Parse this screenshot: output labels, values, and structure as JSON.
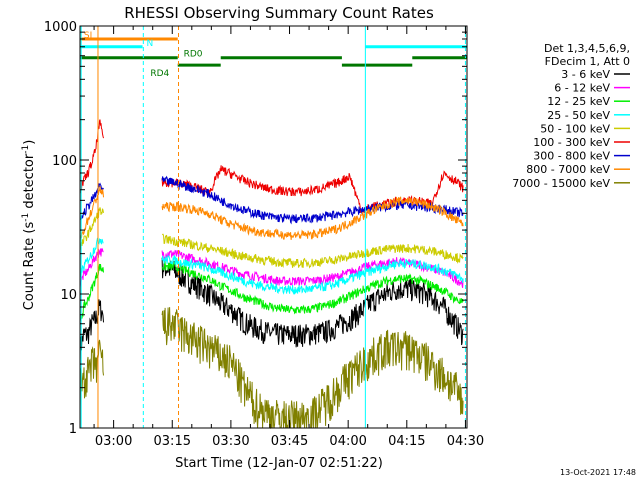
{
  "chart_data": {
    "type": "line",
    "title": "RHESSI Observing Summary Count Rates",
    "xlabel": "Start Time (12-Jan-07 02:51:22)",
    "ylabel_main": "Count Rate (s",
    "ylabel_sup1": "-1",
    "ylabel_mid": " detector",
    "ylabel_sup2": "-1",
    "ylabel_end": ")",
    "x_range_minutes": [
      0,
      99
    ],
    "y_scale": "log",
    "ylim": [
      1,
      1000
    ],
    "x_ticks": [
      {
        "label": "03:00",
        "minute": 8.6
      },
      {
        "label": "03:15",
        "minute": 23.6
      },
      {
        "label": "03:30",
        "minute": 38.6
      },
      {
        "label": "03:45",
        "minute": 53.6
      },
      {
        "label": "04:00",
        "minute": 68.6
      },
      {
        "label": "04:15",
        "minute": 83.6
      },
      {
        "label": "04:30",
        "minute": 98.6
      }
    ],
    "y_ticks": [
      {
        "label": "1",
        "value": 1
      },
      {
        "label": "10",
        "value": 10
      },
      {
        "label": "100",
        "value": 100
      },
      {
        "label": "1000",
        "value": 1000
      }
    ],
    "legend": {
      "position": "right",
      "header": [
        "Det 1,3,4,5,6,9,",
        "FDecim 1, Att 0"
      ],
      "entries": [
        {
          "label": "3 - 6 keV",
          "color": "#000000"
        },
        {
          "label": "6 - 12 keV",
          "color": "#ff00ff"
        },
        {
          "label": "12 - 25 keV",
          "color": "#00ee00"
        },
        {
          "label": "25 - 50 keV",
          "color": "#00ffff"
        },
        {
          "label": "50 - 100 keV",
          "color": "#cccc00"
        },
        {
          "label": "100 - 300 keV",
          "color": "#ee0000"
        },
        {
          "label": "300 - 800 keV",
          "color": "#0000cc"
        },
        {
          "label": "800 - 7000 keV",
          "color": "#ff8800"
        },
        {
          "label": "7000 - 15000 keV",
          "color": "#808000"
        }
      ]
    },
    "series": [
      {
        "name": "3 - 6 keV",
        "color": "#000000",
        "segments": [
          {
            "x": [
              0,
              1,
              2,
              3,
              4,
              5,
              6
            ],
            "y": [
              4,
              5,
              5,
              6,
              6.5,
              8,
              7
            ]
          },
          {
            "x": [
              21,
              24,
              27,
              30,
              33,
              36,
              39,
              42,
              45,
              48,
              51,
              54,
              57,
              60,
              63,
              66,
              69,
              72,
              75,
              78,
              81,
              84,
              87,
              90,
              93,
              96,
              98
            ],
            "y": [
              16,
              15,
              13,
              11.5,
              10,
              8.5,
              7.5,
              6.2,
              5.6,
              5.2,
              5,
              5,
              5,
              5.1,
              5.3,
              5.8,
              6.5,
              7.5,
              9,
              10,
              11,
              11,
              10.5,
              9.5,
              8,
              6,
              5
            ]
          }
        ]
      },
      {
        "name": "6 - 12 keV",
        "color": "#ff00ff",
        "segments": [
          {
            "x": [
              0,
              1,
              2,
              3,
              4,
              5,
              6
            ],
            "y": [
              12,
              14,
              15,
              17,
              19,
              21,
              20
            ]
          },
          {
            "x": [
              21,
              24,
              27,
              30,
              33,
              36,
              39,
              42,
              45,
              48,
              51,
              54,
              57,
              60,
              63,
              66,
              69,
              72,
              75,
              78,
              81,
              84,
              87,
              90,
              93,
              96,
              98
            ],
            "y": [
              20,
              20,
              19,
              18,
              17,
              16,
              15,
              14,
              13.5,
              13,
              12.5,
              12.5,
              12.5,
              12.6,
              13,
              13.5,
              14.5,
              15.5,
              16.5,
              17,
              17.5,
              17,
              16.5,
              15.5,
              14.5,
              13,
              12
            ]
          }
        ]
      },
      {
        "name": "12 - 25 keV",
        "color": "#00ee00",
        "segments": [
          {
            "x": [
              0,
              1,
              2,
              3,
              4,
              5,
              6
            ],
            "y": [
              6,
              8,
              9,
              11,
              13,
              16,
              15
            ]
          },
          {
            "x": [
              21,
              24,
              27,
              30,
              33,
              36,
              39,
              42,
              45,
              48,
              51,
              54,
              57,
              60,
              63,
              66,
              69,
              72,
              75,
              78,
              81,
              84,
              87,
              90,
              93,
              96,
              98
            ],
            "y": [
              16,
              16,
              15,
              14,
              13,
              11.5,
              10.5,
              9.5,
              8.8,
              8.2,
              7.8,
              7.6,
              7.6,
              7.8,
              8.2,
              8.8,
              9.6,
              10.6,
              11.6,
              12.4,
              13,
              13,
              12.6,
              11.6,
              10.6,
              9.2,
              8.5
            ]
          }
        ]
      },
      {
        "name": "25 - 50 keV",
        "color": "#00ffff",
        "segments": [
          {
            "x": [
              0,
              1,
              2,
              3,
              4,
              5,
              6
            ],
            "y": [
              14,
              16,
              18,
              20,
              23,
              26,
              25
            ]
          },
          {
            "x": [
              21,
              24,
              27,
              30,
              33,
              36,
              39,
              42,
              45,
              48,
              51,
              54,
              57,
              60,
              63,
              66,
              69,
              72,
              75,
              78,
              81,
              84,
              87,
              90,
              93,
              96,
              98
            ],
            "y": [
              18,
              18,
              17,
              16.5,
              15.5,
              14.5,
              13.5,
              12.5,
              11.8,
              11.3,
              11,
              10.8,
              10.8,
              11,
              11.4,
              12,
              13,
              14,
              15,
              16,
              17,
              17,
              16.6,
              16,
              15,
              14,
              13
            ]
          }
        ]
      },
      {
        "name": "50 - 100 keV",
        "color": "#cccc00",
        "segments": [
          {
            "x": [
              0,
              1,
              2,
              3,
              4,
              5,
              6
            ],
            "y": [
              22,
              25,
              28,
              32,
              36,
              42,
              40
            ]
          },
          {
            "x": [
              21,
              24,
              27,
              30,
              33,
              36,
              39,
              42,
              45,
              48,
              51,
              54,
              57,
              60,
              63,
              66,
              69,
              72,
              75,
              78,
              81,
              84,
              87,
              90,
              93,
              96,
              98
            ],
            "y": [
              26,
              25,
              24,
              23,
              22,
              21,
              20,
              19,
              18.4,
              17.8,
              17.3,
              17,
              17,
              17.2,
              17.6,
              18.2,
              19,
              20,
              21,
              21.5,
              22,
              22,
              21.6,
              21,
              20,
              19,
              18
            ]
          }
        ]
      },
      {
        "name": "100 - 300 keV",
        "color": "#ee0000",
        "segments": [
          {
            "x": [
              0,
              1,
              2,
              3,
              4,
              5,
              6
            ],
            "y": [
              60,
              70,
              80,
              95,
              120,
              190,
              150
            ]
          },
          {
            "x": [
              21,
              24,
              27,
              30,
              33,
              36,
              39,
              42,
              45,
              48,
              51,
              54,
              57,
              60,
              63,
              66,
              69,
              72,
              75,
              78,
              81,
              84,
              87,
              90,
              93,
              96,
              98
            ],
            "y": [
              68,
              68,
              66,
              62,
              57,
              85,
              78,
              70,
              65,
              61,
              59,
              58,
              58,
              60,
              63,
              68,
              76,
              42,
              45,
              47,
              49,
              50,
              49,
              47,
              80,
              70,
              62
            ]
          }
        ]
      },
      {
        "name": "300 - 800 keV",
        "color": "#0000cc",
        "segments": [
          {
            "x": [
              0,
              1,
              2,
              3,
              4,
              5,
              6
            ],
            "y": [
              36,
              40,
              45,
              50,
              55,
              65,
              60
            ]
          },
          {
            "x": [
              21,
              24,
              27,
              30,
              33,
              36,
              39,
              42,
              45,
              48,
              51,
              54,
              57,
              60,
              63,
              66,
              69,
              72,
              75,
              78,
              81,
              84,
              87,
              90,
              93,
              96,
              98
            ],
            "y": [
              70,
              68,
              64,
              60,
              56,
              50,
              46,
              42,
              40,
              38,
              37,
              36.5,
              36.5,
              37,
              38,
              39.5,
              41,
              42.5,
              44,
              45,
              46,
              46,
              45,
              44,
              43,
              41,
              40
            ]
          }
        ]
      },
      {
        "name": "800 - 7000 keV",
        "color": "#ff8800",
        "segments": [
          {
            "x": [
              0,
              1,
              2,
              3,
              4,
              5,
              6
            ],
            "y": [
              25,
              30,
              36,
              42,
              50,
              60,
              55
            ]
          },
          {
            "x": [
              21,
              24,
              27,
              30,
              33,
              36,
              39,
              42,
              45,
              48,
              51,
              54,
              57,
              60,
              63,
              66,
              69,
              72,
              75,
              78,
              81,
              84,
              87,
              90,
              93,
              96,
              98
            ],
            "y": [
              45,
              45,
              44,
              42,
              40,
              36,
              33,
              31,
              29.5,
              28.5,
              28,
              27.5,
              27.5,
              28,
              29,
              31,
              34,
              38,
              42,
              46,
              49,
              50,
              48,
              45,
              41,
              36,
              33
            ]
          }
        ]
      },
      {
        "name": "7000 - 15000 keV",
        "color": "#808000",
        "segments": [
          {
            "x": [
              0,
              1,
              2,
              3,
              4,
              5,
              6
            ],
            "y": [
              2,
              2.5,
              2.5,
              3,
              3,
              3.5,
              3
            ]
          },
          {
            "x": [
              21,
              24,
              27,
              30,
              33,
              36,
              39,
              42,
              45,
              48,
              51,
              54,
              57,
              60,
              63,
              66,
              69,
              72,
              75,
              78,
              81,
              84,
              87,
              90,
              93,
              96,
              98
            ],
            "y": [
              6,
              6,
              5,
              4.5,
              4,
              3.5,
              3,
              2,
              1.5,
              1.3,
              1.2,
              1.2,
              1.2,
              1.3,
              1.6,
              2,
              2.5,
              3,
              3.5,
              4,
              4,
              4,
              3.5,
              3,
              2.5,
              2,
              1.5
            ]
          }
        ]
      }
    ],
    "status_bars": [
      {
        "label": "SI",
        "color": "#ff8800",
        "level": 800,
        "x": [
          0,
          25
        ],
        "label_at": 1
      },
      {
        "label": "N",
        "color": "#00ffff",
        "level": 700,
        "x": [
          0,
          16
        ],
        "label_at": 17
      },
      {
        "label": "N",
        "color": "#00ffff",
        "level": 700,
        "x": [
          73,
          99
        ],
        "label_at": null
      },
      {
        "label": "RD0",
        "color": "#007700",
        "level": 580,
        "x": [
          0,
          25
        ],
        "label_at": 26.5
      },
      {
        "label": "RD0",
        "color": "#007700",
        "level": 580,
        "x": [
          36,
          67
        ],
        "label_at": null
      },
      {
        "label": "RD0",
        "color": "#007700",
        "level": 580,
        "x": [
          85,
          99
        ],
        "label_at": null
      },
      {
        "label": "RD4",
        "color": "#007700",
        "level": 510,
        "x": [
          25,
          36
        ],
        "label_at": 18
      },
      {
        "label": "RD4",
        "color": "#007700",
        "level": 510,
        "x": [
          67,
          85
        ],
        "label_at": null
      }
    ],
    "vertical_markers": [
      {
        "x": 0.3,
        "color": "#00ffff",
        "style": "solid"
      },
      {
        "x": 4.6,
        "color": "#ff8800",
        "style": "solid"
      },
      {
        "x": 16.2,
        "color": "#00ffff",
        "style": "dashed"
      },
      {
        "x": 25.2,
        "color": "#ff8800",
        "style": "dashed"
      },
      {
        "x": 73.0,
        "color": "#00ffff",
        "style": "solid"
      },
      {
        "x": 98.6,
        "color": "#00ffff",
        "style": "dashed"
      }
    ],
    "footer_date": "13-Oct-2021 17:48"
  }
}
